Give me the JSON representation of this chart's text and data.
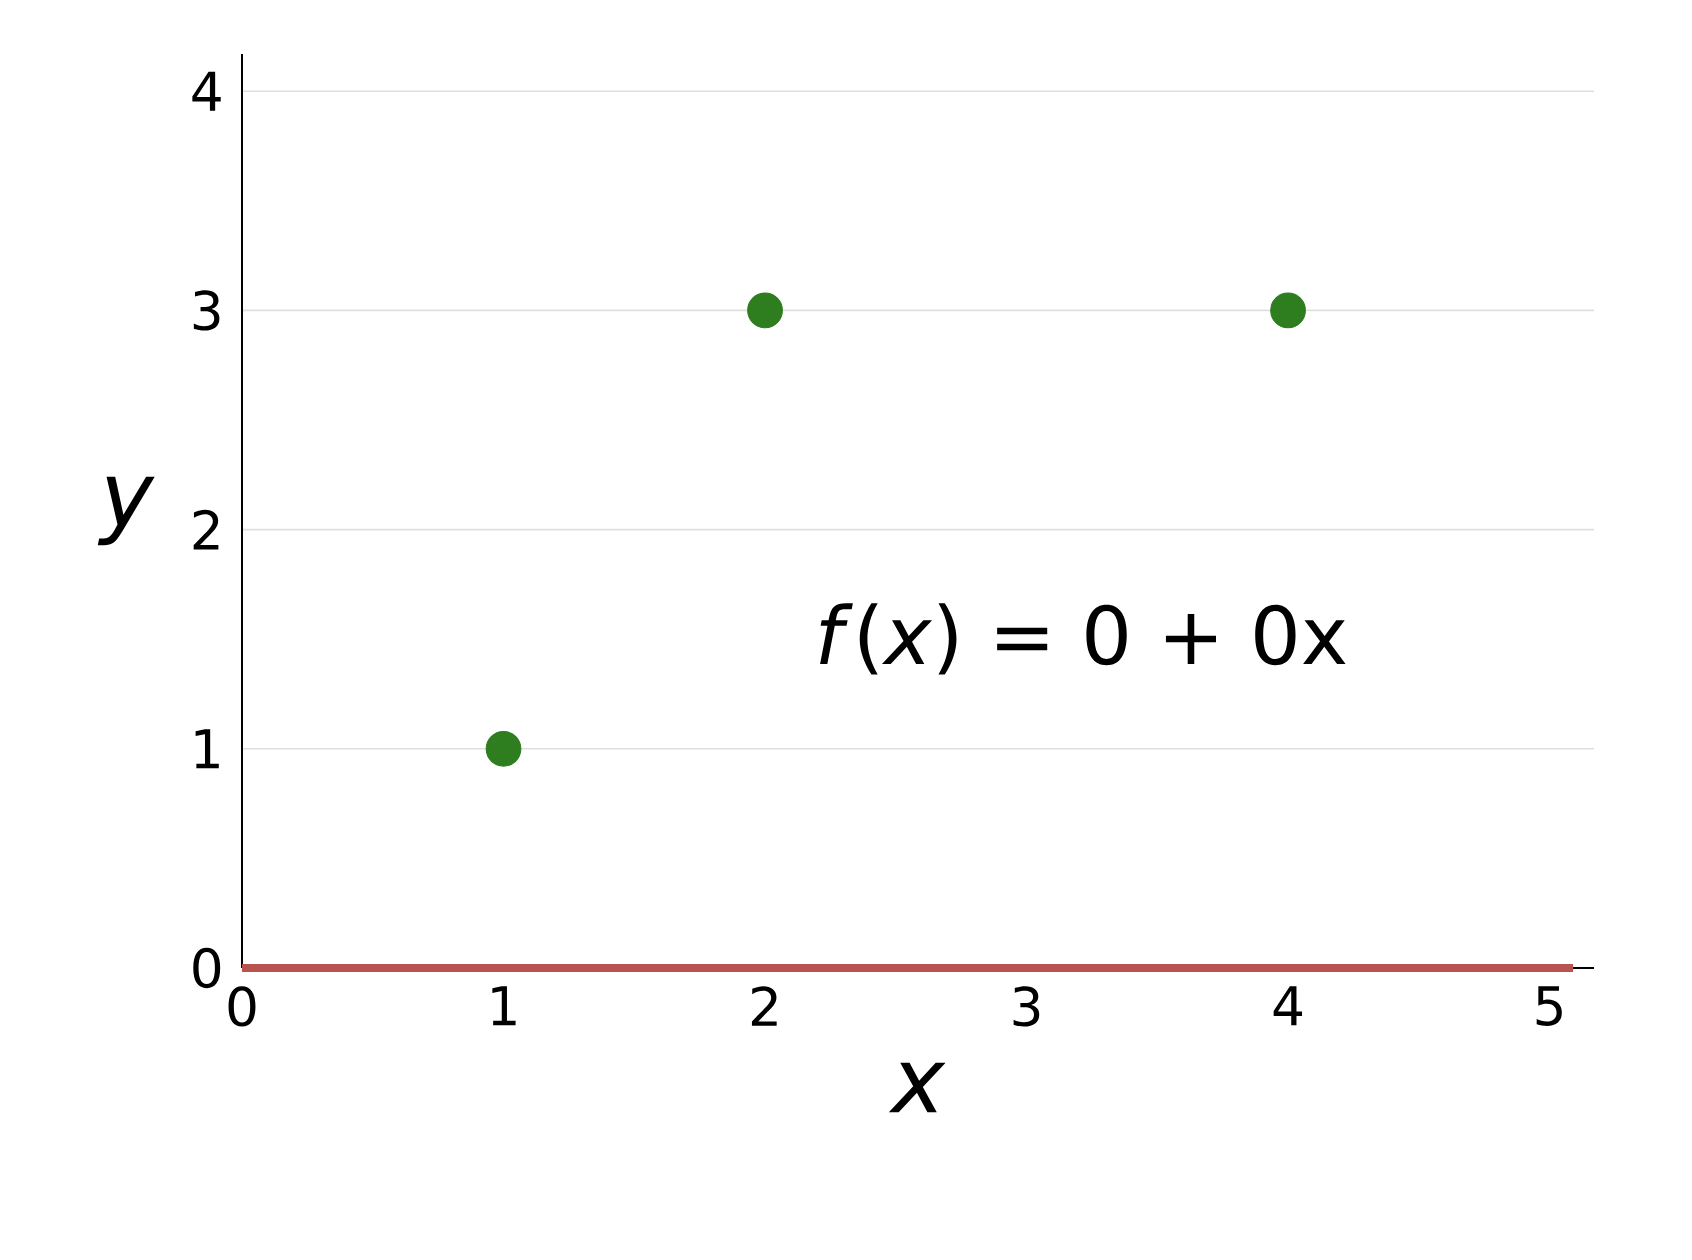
{
  "chart_data": {
    "type": "scatter",
    "xlabel": "x",
    "ylabel": "y",
    "xlim": [
      0,
      5.17
    ],
    "ylim": [
      0,
      4.17
    ],
    "xticks": [
      0,
      1,
      2,
      3,
      4,
      5
    ],
    "yticks": [
      0,
      1,
      2,
      3,
      4
    ],
    "grid": "y",
    "marker": "circle",
    "annotations": [
      "*f*(*x*) = 0 + 0x"
    ],
    "series": [
      {
        "type": "line",
        "marker": "none",
        "color": "#b85450",
        "x": [
          0,
          5.09
        ],
        "values": [
          0,
          0
        ]
      },
      {
        "color": "#2e7d1e",
        "x": [
          1,
          2,
          4
        ],
        "values": [
          1,
          3,
          3
        ]
      }
    ]
  }
}
